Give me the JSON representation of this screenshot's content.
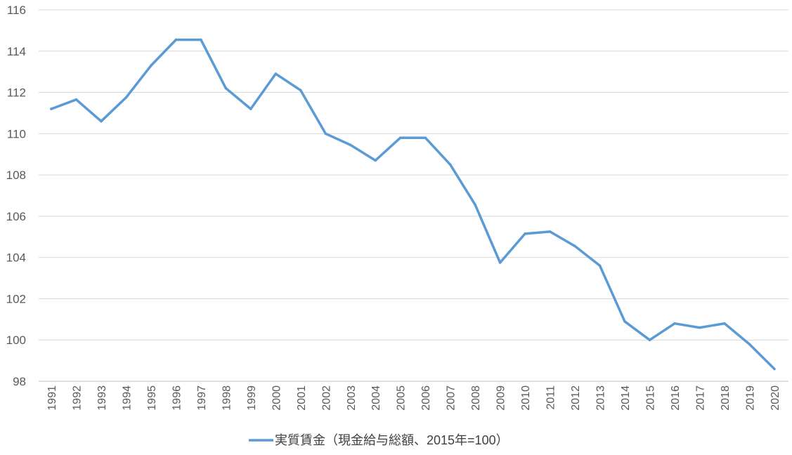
{
  "chart_data": {
    "type": "line",
    "title": "",
    "xlabel": "",
    "ylabel": "",
    "ylim": [
      98,
      116
    ],
    "yticks": [
      98,
      100,
      102,
      104,
      106,
      108,
      110,
      112,
      114,
      116
    ],
    "grid": true,
    "legend_position": "bottom",
    "categories": [
      "1991",
      "1992",
      "1993",
      "1994",
      "1995",
      "1996",
      "1997",
      "1998",
      "1999",
      "2000",
      "2001",
      "2002",
      "2003",
      "2004",
      "2005",
      "2006",
      "2007",
      "2008",
      "2009",
      "2010",
      "2011",
      "2012",
      "2013",
      "2014",
      "2015",
      "2016",
      "2017",
      "2018",
      "2019",
      "2020"
    ],
    "series": [
      {
        "name": "実質賃金（現金給与総額、2015年=100）",
        "color": "#5b9bd5",
        "values": [
          111.2,
          111.65,
          110.6,
          111.75,
          113.3,
          114.55,
          114.55,
          112.2,
          111.2,
          112.9,
          112.1,
          110.0,
          109.45,
          108.7,
          109.8,
          109.8,
          108.5,
          106.55,
          103.75,
          105.15,
          105.25,
          104.55,
          103.6,
          100.9,
          100.0,
          100.8,
          100.6,
          100.8,
          99.8,
          98.6
        ]
      }
    ]
  }
}
